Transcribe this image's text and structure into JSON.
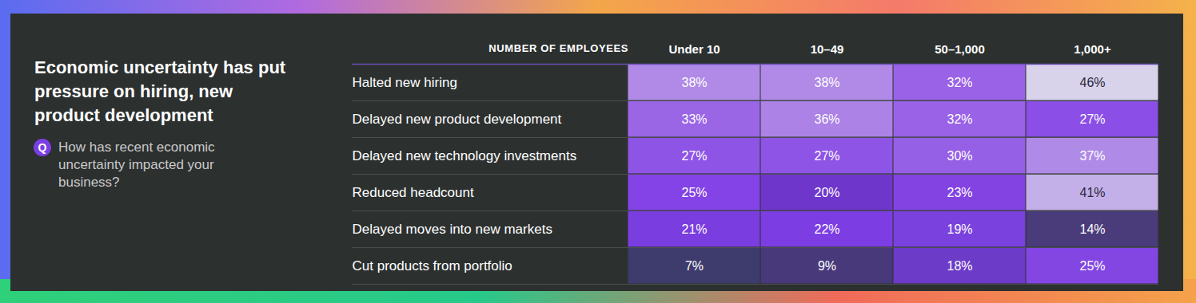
{
  "chart_data": {
    "type": "heatmap",
    "title": "Economic uncertainty has put pressure on hiring, new product development",
    "subtitle": "How has recent economic uncertainty impacted your business?",
    "question_badge": "Q",
    "x_label": "NUMBER OF EMPLOYEES",
    "x": [
      "Under 10",
      "10–49",
      "50–1,000",
      "1,000+"
    ],
    "y": [
      "Halted new hiring",
      "Delayed new product development",
      "Delayed new technology investments",
      "Reduced headcount",
      "Delayed moves into new markets",
      "Cut products from portfolio"
    ],
    "values": [
      [
        38,
        38,
        32,
        46
      ],
      [
        33,
        36,
        32,
        27
      ],
      [
        27,
        27,
        30,
        37
      ],
      [
        25,
        20,
        23,
        41
      ],
      [
        21,
        22,
        19,
        14
      ],
      [
        7,
        9,
        18,
        25
      ]
    ],
    "value_labels": [
      [
        "38%",
        "38%",
        "32%",
        "46%"
      ],
      [
        "33%",
        "36%",
        "32%",
        "27%"
      ],
      [
        "27%",
        "27%",
        "30%",
        "37%"
      ],
      [
        "25%",
        "20%",
        "23%",
        "41%"
      ],
      [
        "21%",
        "22%",
        "19%",
        "14%"
      ],
      [
        "7%",
        "9%",
        "18%",
        "25%"
      ]
    ],
    "colors": [
      [
        "#b08ae6",
        "#b08ae6",
        "#9a62e6",
        "#d8d3eb"
      ],
      [
        "#9b66e6",
        "#ac82e6",
        "#9a62e6",
        "#8b4ee6"
      ],
      [
        "#8e54e6",
        "#8e54e6",
        "#9660e6",
        "#af8ae6"
      ],
      [
        "#8443e6",
        "#6f36cc",
        "#8343e3",
        "#c4b0e8"
      ],
      [
        "#7a3de0",
        "#7c3ee3",
        "#7a41de",
        "#4a3c7a"
      ],
      [
        "#3e3c6c",
        "#47397a",
        "#6c3bc8",
        "#8446e3"
      ]
    ],
    "data_labels": true
  }
}
